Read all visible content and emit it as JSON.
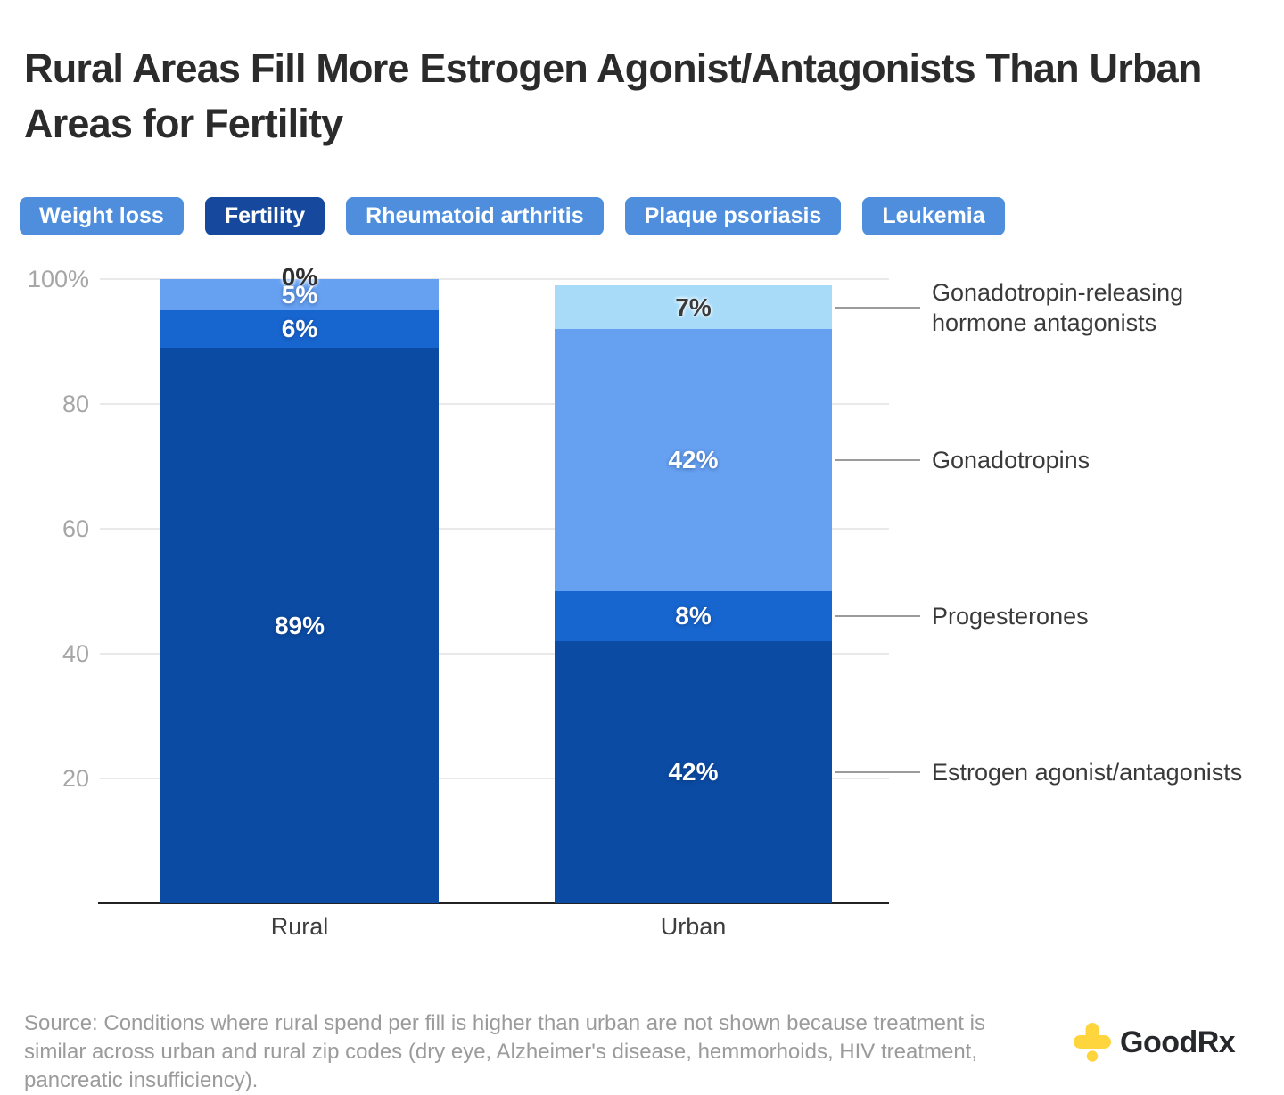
{
  "title": "Rural Areas Fill More Estrogen Agonist/Antagonists Than Urban Areas for Fertility",
  "tabs": {
    "items": [
      {
        "label": "Weight loss",
        "active": false
      },
      {
        "label": "Fertility",
        "active": true
      },
      {
        "label": "Rheumatoid arthritis",
        "active": false
      },
      {
        "label": "Plaque psoriasis",
        "active": false
      },
      {
        "label": "Leukemia",
        "active": false
      }
    ],
    "colors": {
      "active_bg": "#16499E",
      "inactive_bg": "#4E8EDC",
      "text": "#ffffff"
    }
  },
  "chart_data": {
    "type": "bar",
    "subtype": "stacked-percent-column",
    "categories": [
      "Rural",
      "Urban"
    ],
    "series": [
      {
        "name": "Estrogen agonist/antagonists",
        "color": "#0B4BA3",
        "label_color": "#ffffff",
        "values": [
          89,
          42
        ]
      },
      {
        "name": "Progesterones",
        "color": "#1765CE",
        "label_color": "#ffffff",
        "values": [
          6,
          8
        ]
      },
      {
        "name": "Gonadotropins",
        "color": "#66A0F0",
        "label_color": "#ffffff",
        "values": [
          5,
          42
        ]
      },
      {
        "name": "Gonadotropin-releasing hormone antagonists",
        "color": "#A7DBF8",
        "label_color": "#3a3a3a",
        "values": [
          0,
          7
        ]
      }
    ],
    "value_suffix": "%",
    "y_ticks": [
      {
        "label": "100%",
        "value": 100
      },
      {
        "label": "80",
        "value": 80
      },
      {
        "label": "60",
        "value": 60
      },
      {
        "label": "40",
        "value": 40
      },
      {
        "label": "20",
        "value": 20
      }
    ],
    "ylim": [
      0,
      100
    ],
    "grid": true,
    "legend_position": "right"
  },
  "source_note": "Source: Conditions where rural spend per fill is higher than urban are not shown because treatment is similar across urban and rural zip codes (dry eye, Alzheimer's disease, hemmorhoids, HIV treatment, pancreatic insufficiency).",
  "logo": {
    "text": "GoodRx",
    "icon_color": "#FFD53D",
    "text_color": "#26282c"
  }
}
